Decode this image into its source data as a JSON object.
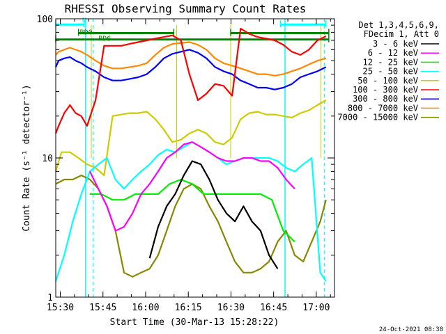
{
  "chart_data": {
    "type": "line",
    "title": "RHESSI Observing Summary Count Rates",
    "xlabel": "Start Time (30-Mar-13 15:28:22)",
    "ylabel": "Count Rate (s⁻¹ detector⁻¹)",
    "yscale": "log",
    "ylim": [
      1,
      100
    ],
    "xlim_minutes": [
      0,
      98
    ],
    "x_ticks": [
      {
        "label": "15:30",
        "minute": 1.6
      },
      {
        "label": "15:45",
        "minute": 16.6
      },
      {
        "label": "16:00",
        "minute": 31.6
      },
      {
        "label": "16:15",
        "minute": 46.6
      },
      {
        "label": "16:30",
        "minute": 61.6
      },
      {
        "label": "16:45",
        "minute": 76.6
      },
      {
        "label": "17:00",
        "minute": 91.6
      }
    ],
    "y_ticks": [
      {
        "label": "1",
        "value": 1
      },
      {
        "label": "10",
        "value": 10
      },
      {
        "label": "100",
        "value": 100
      }
    ],
    "legend": {
      "placement": "right",
      "header": [
        "Det 1,3,4,5,6,9,",
        "FDecim 1, Att 0"
      ],
      "entries": [
        {
          "name": "3 - 6 keV",
          "color": "#000000"
        },
        {
          "name": "6 - 12 keV",
          "color": "#ff00ff"
        },
        {
          "name": "12 - 25 keV",
          "color": "#00ee00"
        },
        {
          "name": "25 - 50 keV",
          "color": "#00ffff"
        },
        {
          "name": "50 - 100 keV",
          "color": "#cccc00"
        },
        {
          "name": "100 - 300 keV",
          "color": "#ff0000"
        },
        {
          "name": "300 - 800 keV",
          "color": "#0000ff"
        },
        {
          "name": "800 - 7000 keV",
          "color": "#ff8800"
        },
        {
          "name": "7000 - 15000 keV",
          "color": "#888800"
        }
      ]
    },
    "flags": {
      "n_label": "N",
      "rd0_label": "RD0",
      "rd6_label": "RD6",
      "n_color": "#00ffff",
      "rd_color": "#008800",
      "n_intervals": [
        [
          -1,
          10
        ],
        [
          79,
          95
        ]
      ],
      "rd0_intervals": [
        [
          8,
          41.5
        ],
        [
          61.5,
          96
        ]
      ],
      "rd6_intervals": [
        [
          -1,
          96
        ]
      ],
      "n_level": 91,
      "rd0_level": 79,
      "rd6_level": 71
    },
    "vertical_markers": {
      "solid_cyan_minutes": [
        10.5,
        80.6
      ],
      "dashed_cyan_minutes": [
        13.2,
        94.5
      ],
      "solid_yellow_minutes": [
        12.5,
        42.5,
        61.5,
        93.2
      ]
    },
    "series": [
      {
        "name": "3 - 6 keV",
        "color": "#000000",
        "x": [
          33,
          36,
          39,
          42,
          45,
          48,
          51,
          54,
          57,
          60,
          63,
          66,
          69,
          72,
          75,
          78
        ],
        "y": [
          1.9,
          3.2,
          4.5,
          5.5,
          7.5,
          9.5,
          9.0,
          7.0,
          5.0,
          4.0,
          3.5,
          4.5,
          3.5,
          3.0,
          2.0,
          1.6
        ]
      },
      {
        "name": "6 - 12 keV",
        "color": "#ff00ff",
        "x": [
          12,
          15,
          18,
          21,
          24,
          27,
          30,
          33,
          36,
          39,
          42,
          45,
          48,
          51,
          54,
          57,
          60,
          63,
          66,
          69,
          72,
          75,
          78,
          81,
          84
        ],
        "y": [
          8.0,
          6.0,
          4.5,
          3.0,
          3.2,
          4.0,
          5.5,
          6.5,
          8.0,
          10.0,
          11.0,
          12.5,
          13.0,
          12.0,
          11.0,
          10.0,
          9.5,
          9.5,
          10.0,
          10.0,
          9.5,
          9.5,
          8.5,
          7.0,
          6.0
        ]
      },
      {
        "name": "12 - 25 keV",
        "color": "#00ee00",
        "x": [
          12,
          16,
          20,
          24,
          28,
          32,
          36,
          40,
          44,
          48,
          52,
          56,
          60,
          64,
          68,
          72,
          76,
          80,
          84
        ],
        "y": [
          5.5,
          5.5,
          5.0,
          5.0,
          5.5,
          5.5,
          5.5,
          6.5,
          7.0,
          6.5,
          5.5,
          5.5,
          5.5,
          5.5,
          5.5,
          5.5,
          5.0,
          3.0,
          2.5
        ]
      },
      {
        "name": "25 - 50 keV",
        "color": "#00ffff",
        "x": [
          -1,
          3,
          6,
          9,
          12,
          15,
          18,
          21,
          24,
          27,
          30,
          33,
          36,
          39,
          42,
          45,
          48,
          51,
          54,
          57,
          60,
          63,
          66,
          69,
          72,
          75,
          78,
          81,
          84,
          87,
          90,
          93,
          95
        ],
        "y": [
          1.3,
          2.0,
          3.5,
          5.5,
          8.0,
          9.0,
          10.0,
          7.0,
          6.0,
          7.0,
          8.0,
          9.0,
          10.5,
          11.5,
          11.0,
          12.0,
          13.0,
          12.0,
          11.0,
          10.0,
          9.0,
          9.5,
          10.0,
          10.0,
          10.0,
          10.0,
          9.5,
          8.5,
          8.0,
          9.0,
          10.0,
          1.5,
          1.3
        ]
      },
      {
        "name": "50 - 100 keV",
        "color": "#cccc00",
        "x": [
          -1,
          2,
          5,
          8,
          11,
          14,
          17,
          20,
          23,
          26,
          29,
          32,
          35,
          38,
          41,
          44,
          47,
          50,
          53,
          56,
          59,
          62,
          65,
          68,
          71,
          74,
          77,
          80,
          83,
          86,
          89,
          92,
          95
        ],
        "y": [
          8.0,
          11.0,
          11.0,
          10.0,
          9.0,
          8.5,
          7.5,
          20.0,
          20.5,
          21.0,
          21.0,
          21.5,
          19.0,
          16.0,
          13.0,
          13.5,
          15.0,
          16.0,
          15.0,
          13.0,
          12.5,
          14.0,
          19.0,
          21.0,
          21.5,
          20.5,
          20.5,
          20.0,
          19.5,
          21.0,
          22.0,
          24.0,
          26.0
        ]
      },
      {
        "name": "100 - 300 keV",
        "color": "#ff0000",
        "x": [
          -1,
          1,
          3,
          5,
          7,
          9,
          11,
          14,
          17,
          20,
          23,
          26,
          29,
          32,
          35,
          38,
          41,
          44,
          47,
          50,
          53,
          56,
          59,
          62,
          65,
          68,
          71,
          74,
          77,
          80,
          83,
          86,
          89,
          92,
          95
        ],
        "y": [
          15.0,
          17.0,
          21.0,
          24.0,
          21.0,
          20.0,
          17.0,
          26.0,
          64.0,
          64.0,
          64.0,
          66.0,
          68.0,
          70.0,
          72.0,
          74.0,
          76.0,
          70.0,
          40.0,
          26.0,
          29.0,
          34.0,
          33.0,
          28.0,
          85.0,
          78.0,
          74.0,
          72.0,
          70.0,
          65.0,
          58.0,
          55.0,
          60.0,
          70.0,
          75.0
        ]
      },
      {
        "name": "300 - 800 keV",
        "color": "#0000ff",
        "x": [
          -1,
          1,
          3,
          5,
          7,
          9,
          11,
          14,
          17,
          20,
          23,
          26,
          29,
          32,
          35,
          38,
          41,
          44,
          47,
          50,
          53,
          56,
          59,
          62,
          65,
          68,
          71,
          74,
          77,
          80,
          83,
          86,
          89,
          92,
          95
        ],
        "y": [
          45.0,
          50.0,
          52.0,
          53.0,
          50.0,
          48.0,
          45.0,
          42.0,
          38.0,
          36.0,
          36.0,
          37.0,
          38.0,
          40.0,
          45.0,
          52.0,
          56.0,
          58.0,
          60.0,
          57.0,
          52.0,
          45.0,
          42.0,
          40.0,
          36.0,
          34.0,
          32.0,
          32.0,
          31.0,
          32.0,
          34.0,
          38.0,
          40.0,
          42.0,
          45.0
        ]
      },
      {
        "name": "800 - 7000 keV",
        "color": "#ff8800",
        "x": [
          -1,
          1,
          3,
          5,
          7,
          9,
          11,
          14,
          17,
          20,
          23,
          26,
          29,
          32,
          35,
          38,
          41,
          44,
          47,
          50,
          53,
          56,
          59,
          62,
          65,
          68,
          71,
          74,
          77,
          80,
          83,
          86,
          89,
          92,
          95
        ],
        "y": [
          55.0,
          58.0,
          60.0,
          62.0,
          60.0,
          58.0,
          55.0,
          50.0,
          46.0,
          44.0,
          44.0,
          45.0,
          46.0,
          48.0,
          55.0,
          62.0,
          66.0,
          67.0,
          68.0,
          65.0,
          60.0,
          52.0,
          48.0,
          46.0,
          44.0,
          42.0,
          40.0,
          40.0,
          39.0,
          40.0,
          42.0,
          44.0,
          47.0,
          50.0,
          52.0
        ]
      },
      {
        "name": "7000 - 15000 keV",
        "color": "#888800",
        "x": [
          -1,
          3,
          6,
          9,
          12,
          15,
          18,
          21,
          24,
          27,
          30,
          33,
          36,
          39,
          42,
          45,
          48,
          51,
          54,
          57,
          60,
          63,
          66,
          69,
          72,
          75,
          78,
          81,
          84,
          87,
          90,
          93,
          95
        ],
        "y": [
          6.5,
          7.0,
          7.0,
          7.5,
          7.0,
          6.0,
          4.5,
          3.0,
          1.5,
          1.4,
          1.5,
          1.6,
          2.0,
          3.0,
          4.5,
          6.0,
          6.5,
          6.0,
          4.5,
          3.5,
          2.5,
          1.8,
          1.5,
          1.5,
          1.6,
          1.8,
          2.5,
          3.0,
          2.0,
          1.8,
          2.5,
          3.5,
          5.0
        ]
      }
    ],
    "grid": false
  },
  "timestamp": "24-Oct-2021 08:38"
}
